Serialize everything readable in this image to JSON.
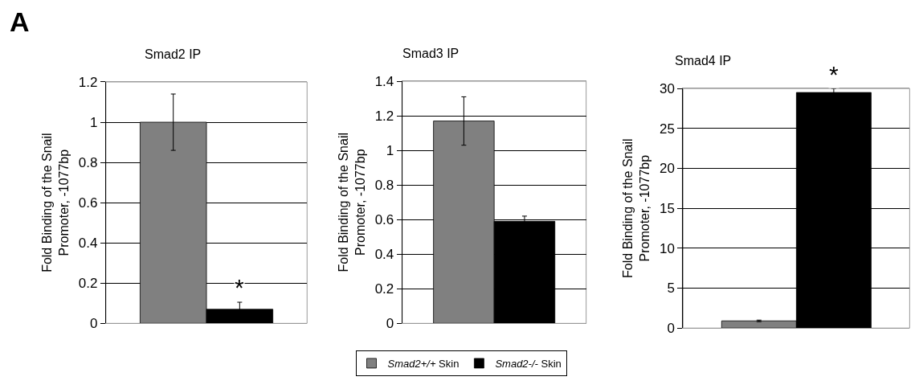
{
  "chart_data": [
    {
      "type": "bar",
      "title": "Smad2 IP",
      "ylabel": "Fold Binding of the Snail Promoter, -1077bp",
      "categories": [
        null
      ],
      "series": [
        {
          "name": "Smad2+/+ Skin",
          "color": "#808080",
          "values": [
            1.0
          ],
          "errors": [
            0.14
          ]
        },
        {
          "name": "Smad2-/- Skin",
          "color": "#000000",
          "values": [
            0.07
          ],
          "errors": [
            0.035
          ]
        }
      ],
      "ylim": [
        0,
        1.2
      ],
      "yticks": [
        0,
        0.2,
        0.4,
        0.6,
        0.8,
        1,
        1.2
      ],
      "grid": "y",
      "legend": "bottom",
      "annotations": [
        "A",
        {
          "text": "*",
          "y": 0.11
        }
      ]
    },
    {
      "type": "bar",
      "title": "Smad3 IP",
      "ylabel": "Fold Binding of the Snail Promoter, -1077bp",
      "categories": [
        null
      ],
      "series": [
        {
          "name": "Smad2+/+ Skin",
          "color": "#808080",
          "values": [
            1.17
          ],
          "errors": [
            0.14
          ]
        },
        {
          "name": "Smad2-/- Skin",
          "color": "#000000",
          "values": [
            0.59
          ],
          "errors": [
            0.03
          ]
        }
      ],
      "ylim": [
        0,
        1.4
      ],
      "yticks": [
        0,
        0.2,
        0.4,
        0.6,
        0.8,
        1,
        1.2,
        1.4
      ],
      "grid": "y",
      "legend": "bottom"
    },
    {
      "type": "bar",
      "title": "Smad4 IP",
      "ylabel": "Fold Binding of the Snail Promoter, -1077bp",
      "categories": [
        null
      ],
      "series": [
        {
          "name": "Smad2+/+ Skin",
          "color": "#808080",
          "values": [
            0.9
          ],
          "errors": [
            0.1
          ]
        },
        {
          "name": "Smad2-/- Skin",
          "color": "#000000",
          "values": [
            29.5
          ],
          "errors": [
            0.5
          ]
        }
      ],
      "ylim": [
        0,
        30
      ],
      "yticks": [
        0,
        5,
        10,
        15,
        20,
        25,
        30
      ],
      "grid": "y",
      "legend": "bottom",
      "annotations": [
        {
          "text": "*",
          "y": 30
        }
      ]
    }
  ]
}
